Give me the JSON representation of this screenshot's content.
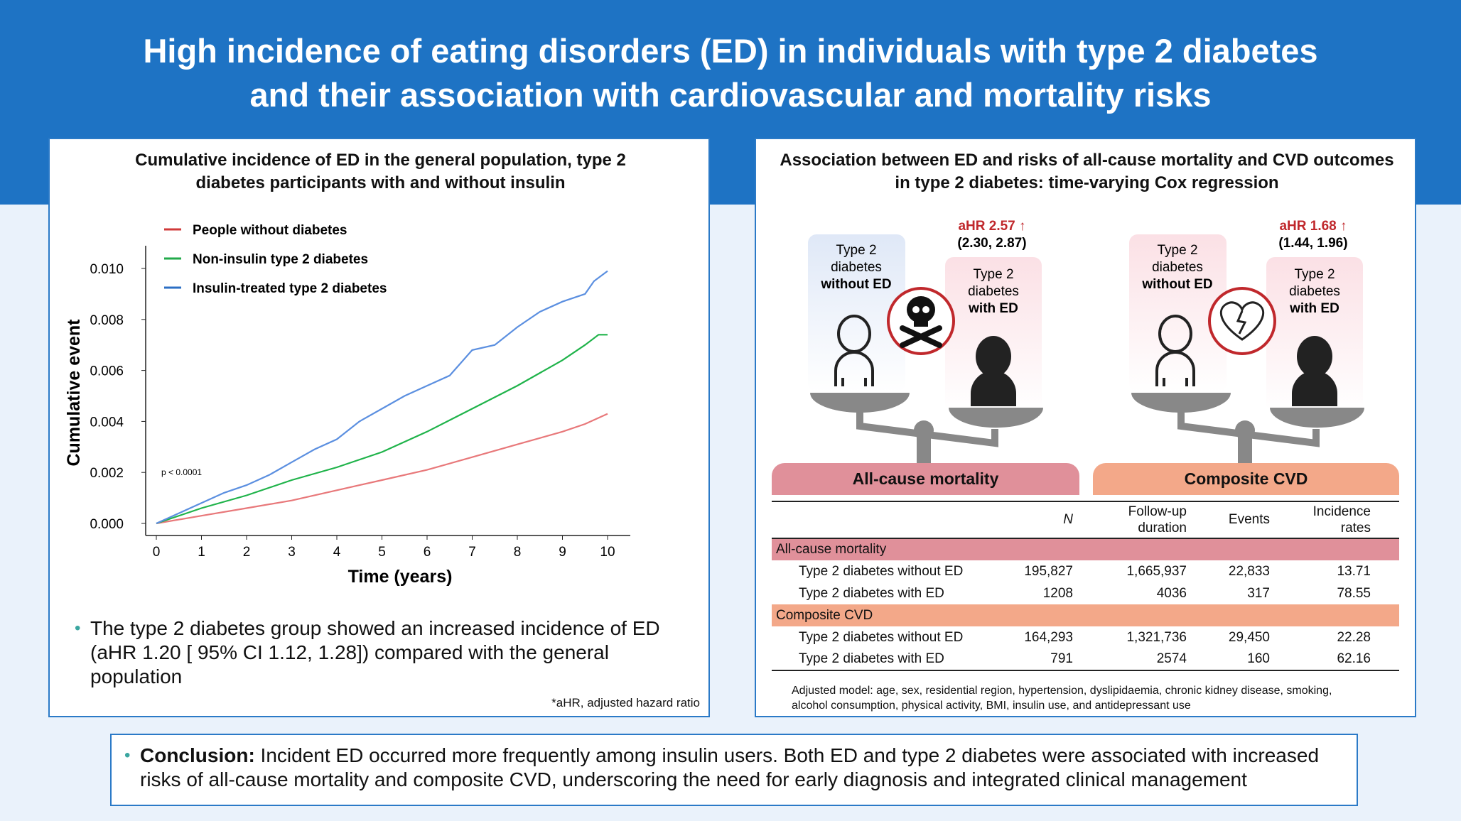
{
  "header": {
    "title_line1": "High incidence of eating disorders (ED) in individuals with type 2 diabetes",
    "title_line2": "and their association with cardiovascular and mortality risks"
  },
  "left": {
    "title_line1": "Cumulative incidence of ED in the general population, type 2",
    "title_line2": "diabetes participants with and without insulin",
    "bullet_line1": "The type 2 diabetes group showed an increased incidence of ED",
    "bullet_line2": "(aHR 1.20 [ 95% CI 1.12, 1.28]) compared with the general",
    "bullet_line3": "population",
    "footnote": "*aHR, adjusted hazard ratio"
  },
  "chart_data": {
    "type": "line",
    "title": "",
    "xlabel": "Time (years)",
    "ylabel": "Cumulative event",
    "xlim": [
      0,
      10
    ],
    "ylim": [
      0,
      0.01
    ],
    "xticks": [
      "0",
      "1",
      "2",
      "3",
      "4",
      "5",
      "6",
      "7",
      "8",
      "9",
      "10"
    ],
    "yticks": [
      "0.000",
      "0.002",
      "0.004",
      "0.006",
      "0.008",
      "0.010"
    ],
    "annotation": "p < 0.0001",
    "legend_position": "top-left",
    "series": [
      {
        "name": "People without diabetes",
        "color": "#e8787a",
        "legend_color": "#d03a3a",
        "x": [
          0,
          1,
          2,
          3,
          4,
          5,
          6,
          7,
          8,
          9,
          9.5,
          10
        ],
        "y": [
          0,
          0.0003,
          0.0006,
          0.0009,
          0.0013,
          0.0017,
          0.0021,
          0.0026,
          0.0031,
          0.0036,
          0.0039,
          0.0043
        ]
      },
      {
        "name": "Non-insulin type 2 diabetes",
        "color": "#1fb34a",
        "legend_color": "#22aa4a",
        "x": [
          0,
          1,
          2,
          3,
          4,
          5,
          6,
          7,
          8,
          9,
          9.5,
          9.8,
          10
        ],
        "y": [
          0,
          0.0006,
          0.0011,
          0.0017,
          0.0022,
          0.0028,
          0.0036,
          0.0045,
          0.0054,
          0.0064,
          0.007,
          0.0074,
          0.0074
        ]
      },
      {
        "name": "Insulin-treated type 2 diabetes",
        "color": "#5b8fe0",
        "legend_color": "#2c6fc4",
        "x": [
          0,
          0.5,
          1,
          1.5,
          2,
          2.5,
          3,
          3.5,
          4,
          4.5,
          5,
          5.5,
          6,
          6.5,
          7,
          7.5,
          8,
          8.5,
          9,
          9.5,
          9.7,
          10
        ],
        "y": [
          0,
          0.0004,
          0.0008,
          0.0012,
          0.0015,
          0.0019,
          0.0024,
          0.0029,
          0.0033,
          0.004,
          0.0045,
          0.005,
          0.0054,
          0.0058,
          0.0068,
          0.007,
          0.0077,
          0.0083,
          0.0087,
          0.009,
          0.0095,
          0.0099
        ]
      }
    ]
  },
  "right": {
    "title_line1": "Association between ED and risks of all-cause mortality and CVD outcomes",
    "title_line2": "in type 2 diabetes: time-varying Cox regression",
    "scales": [
      {
        "aHR": "aHR 2.57 ↑",
        "ci": "(2.30, 2.87)",
        "without_l1": "Type 2",
        "without_l2": "diabetes",
        "without_l3": "without ED",
        "with_l1": "Type 2",
        "with_l2": "diabetes",
        "with_l3": "with ED",
        "icon": "skull-crossbones-icon",
        "label": "All-cause mortality",
        "color": "#e0909a"
      },
      {
        "aHR": "aHR 1.68 ↑",
        "ci": "(1.44, 1.96)",
        "without_l1": "Type 2",
        "without_l2": "diabetes",
        "without_l3": "without ED",
        "with_l1": "Type 2",
        "with_l2": "diabetes",
        "with_l3": "with ED",
        "icon": "broken-heart-icon",
        "label": "Composite CVD",
        "color": "#f3a889"
      }
    ],
    "table": {
      "headers": [
        "N",
        "Follow-up duration",
        "Events",
        "Incidence rates"
      ],
      "h_follow1": "Follow-up",
      "h_follow2": "duration",
      "h_inc1": "Incidence",
      "h_inc2": "rates",
      "sections": [
        {
          "name": "All-cause mortality",
          "rows": [
            [
              "Type 2 diabetes without ED",
              "195,827",
              "1,665,937",
              "22,833",
              "13.71"
            ],
            [
              "Type 2 diabetes with ED",
              "1208",
              "4036",
              "317",
              "78.55"
            ]
          ]
        },
        {
          "name": "Composite CVD",
          "rows": [
            [
              "Type 2 diabetes without ED",
              "164,293",
              "1,321,736",
              "29,450",
              "22.28"
            ],
            [
              "Type 2 diabetes with ED",
              "791",
              "2574",
              "160",
              "62.16"
            ]
          ]
        }
      ]
    },
    "footnote_line1": "Adjusted model: age, sex, residential region, hypertension, dyslipidaemia, chronic kidney disease, smoking,",
    "footnote_line2": "alcohol consumption, physical activity, BMI, insulin use, and antidepressant use"
  },
  "conclusion": {
    "label": "Conclusion:",
    "text": " Incident ED occurred more frequently among insulin users. Both ED and type 2 diabetes were associated with increased risks of all-cause mortality and composite CVD, underscoring the need for early diagnosis and integrated clinical management"
  }
}
